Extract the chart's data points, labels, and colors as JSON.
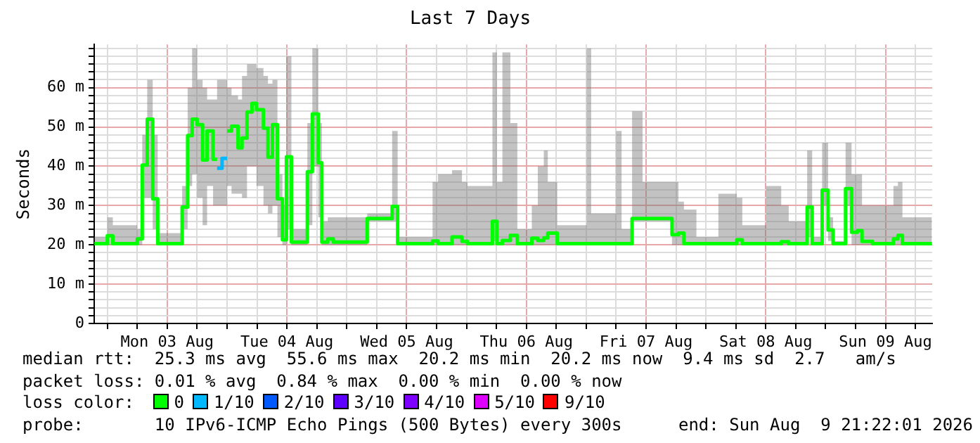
{
  "chart_data": {
    "type": "step",
    "title": "Last 7 Days",
    "ylabel": "Seconds",
    "xlim": [
      "2026-08-02T21:22",
      "2026-08-09T21:22"
    ],
    "xticks": [
      {
        "value": "2026-08-03T00:00",
        "label": null
      },
      {
        "value": "2026-08-03T06:00",
        "label": null
      },
      {
        "value": "2026-08-03T12:00",
        "label": "Mon 03 Aug"
      },
      {
        "value": "2026-08-03T18:00",
        "label": null
      },
      {
        "value": "2026-08-04T00:00",
        "label": null
      },
      {
        "value": "2026-08-04T06:00",
        "label": null
      },
      {
        "value": "2026-08-04T12:00",
        "label": "Tue 04 Aug"
      },
      {
        "value": "2026-08-04T18:00",
        "label": null
      },
      {
        "value": "2026-08-05T00:00",
        "label": null
      },
      {
        "value": "2026-08-05T06:00",
        "label": null
      },
      {
        "value": "2026-08-05T12:00",
        "label": "Wed 05 Aug"
      },
      {
        "value": "2026-08-05T18:00",
        "label": null
      },
      {
        "value": "2026-08-06T00:00",
        "label": null
      },
      {
        "value": "2026-08-06T06:00",
        "label": null
      },
      {
        "value": "2026-08-06T12:00",
        "label": "Thu 06 Aug"
      },
      {
        "value": "2026-08-06T18:00",
        "label": null
      },
      {
        "value": "2026-08-07T00:00",
        "label": null
      },
      {
        "value": "2026-08-07T06:00",
        "label": null
      },
      {
        "value": "2026-08-07T12:00",
        "label": "Fri 07 Aug"
      },
      {
        "value": "2026-08-07T18:00",
        "label": null
      },
      {
        "value": "2026-08-08T00:00",
        "label": null
      },
      {
        "value": "2026-08-08T06:00",
        "label": null
      },
      {
        "value": "2026-08-08T12:00",
        "label": "Sat 08 Aug"
      },
      {
        "value": "2026-08-08T18:00",
        "label": null
      },
      {
        "value": "2026-08-09T00:00",
        "label": null
      },
      {
        "value": "2026-08-09T06:00",
        "label": null
      },
      {
        "value": "2026-08-09T12:00",
        "label": "Sun 09 Aug"
      },
      {
        "value": "2026-08-09T18:00",
        "label": null
      }
    ],
    "ylim": [
      0,
      71
    ],
    "yticks": [
      0,
      {
        "value": 2,
        "label": null
      },
      {
        "value": 4,
        "label": null
      },
      {
        "value": 6,
        "label": null
      },
      {
        "value": 8,
        "label": null
      },
      {
        "value": 10,
        "label": "10 m"
      },
      {
        "value": 12,
        "label": null
      },
      {
        "value": 14,
        "label": null
      },
      {
        "value": 16,
        "label": null
      },
      {
        "value": 18,
        "label": null
      },
      {
        "value": 20,
        "label": "20 m"
      },
      {
        "value": 22,
        "label": null
      },
      {
        "value": 24,
        "label": null
      },
      {
        "value": 26,
        "label": null
      },
      {
        "value": 28,
        "label": null
      },
      {
        "value": 30,
        "label": "30 m"
      },
      {
        "value": 32,
        "label": null
      },
      {
        "value": 34,
        "label": null
      },
      {
        "value": 36,
        "label": null
      },
      {
        "value": 38,
        "label": null
      },
      {
        "value": 40,
        "label": "40 m"
      },
      {
        "value": 42,
        "label": null
      },
      {
        "value": 44,
        "label": null
      },
      {
        "value": 46,
        "label": null
      },
      {
        "value": 48,
        "label": null
      },
      {
        "value": 50,
        "label": "50 m"
      },
      {
        "value": 52,
        "label": null
      },
      {
        "value": 54,
        "label": null
      },
      {
        "value": 56,
        "label": null
      },
      {
        "value": 58,
        "label": null
      },
      {
        "value": 60,
        "label": "60 m"
      },
      {
        "value": 62,
        "label": null
      },
      {
        "value": 64,
        "label": null
      },
      {
        "value": 66,
        "label": null
      },
      {
        "value": 68,
        "label": null
      },
      {
        "value": 70,
        "label": null
      }
    ],
    "grid": true,
    "legend": "bottom",
    "legend_title": "loss color:",
    "line_style": "solid",
    "marker": "none",
    "series": [
      {
        "name": "0",
        "color": "#00ff00",
        "x": [
          "2026-08-02T21:24",
          "2026-08-03T00:00",
          "2026-08-03T01:06",
          "2026-08-03T06:00",
          "2026-08-03T07:00",
          "2026-08-03T08:00",
          "2026-08-03T09:06",
          "2026-08-03T10:06",
          "2026-08-03T15:00",
          "2026-08-03T16:06",
          "2026-08-03T17:00",
          "2026-08-03T18:00",
          "2026-08-03T19:06",
          "2026-08-03T20:00",
          "2026-08-03T21:12",
          "2026-08-03T22:00",
          "2026-08-03T22:00",
          "2026-08-04T00:00",
          "2026-08-04T00:54",
          "2026-08-04T02:12",
          "2026-08-04T03:00",
          "2026-08-04T04:00",
          "2026-08-04T05:00",
          "2026-08-04T05:54",
          "2026-08-04T07:18",
          "2026-08-04T08:12",
          "2026-08-04T09:06",
          "2026-08-04T10:06",
          "2026-08-04T11:06",
          "2026-08-04T11:54",
          "2026-08-04T12:54",
          "2026-08-04T16:06",
          "2026-08-04T17:06",
          "2026-08-04T18:18",
          "2026-08-04T19:00",
          "2026-08-04T20:12",
          "2026-08-04T21:18",
          "2026-08-05T04:06",
          "2026-08-05T09:06",
          "2026-08-05T10:12",
          "2026-08-05T17:12",
          "2026-08-05T18:18",
          "2026-08-05T21:06",
          "2026-08-05T23:06",
          "2026-08-06T00:12",
          "2026-08-06T05:12",
          "2026-08-06T06:06",
          "2026-08-06T07:12",
          "2026-08-06T08:48",
          "2026-08-06T10:12",
          "2026-08-06T13:06",
          "2026-08-06T14:18",
          "2026-08-06T15:30",
          "2026-08-06T16:18",
          "2026-08-06T18:12",
          "2026-08-07T00:06",
          "2026-08-07T01:00",
          "2026-08-07T06:00",
          "2026-08-07T07:06",
          "2026-08-07T09:12",
          "2026-08-07T11:18",
          "2026-08-07T17:12",
          "2026-08-07T18:30",
          "2026-08-07T19:36",
          "2026-08-07T22:06",
          "2026-08-08T02:30",
          "2026-08-08T06:12",
          "2026-08-08T07:18",
          "2026-08-08T12:06",
          "2026-08-08T15:06",
          "2026-08-08T16:36",
          "2026-08-08T20:18",
          "2026-08-08T21:18",
          "2026-08-08T23:18",
          "2026-08-09T00:30",
          "2026-08-09T01:30",
          "2026-08-09T04:00",
          "2026-08-09T05:12",
          "2026-08-09T06:24",
          "2026-08-09T07:18",
          "2026-08-09T09:24",
          "2026-08-09T13:36",
          "2026-08-09T14:30",
          "2026-08-09T15:24",
          "2026-08-09T21:18"
        ],
        "values": [
          20.3,
          22.3,
          20.3,
          21.5,
          40.3,
          52,
          31.7,
          20.3,
          29.6,
          47.8,
          52,
          50.6,
          41.6,
          49,
          41.8,
          41.8,
          null,
          49,
          50.2,
          44.7,
          47.2,
          53.8,
          56,
          54.4,
          49.7,
          42.3,
          50.6,
          31.7,
          21.3,
          42.4,
          20.7,
          38.6,
          53.3,
          40.9,
          20.7,
          21.5,
          20.7,
          26.7,
          29.8,
          20.3,
          21,
          20.3,
          22,
          20.9,
          20.3,
          26,
          20.3,
          21.1,
          22.4,
          20.3,
          21.7,
          21.1,
          21.8,
          23,
          20.3,
          20.3,
          20.3,
          20.3,
          20.3,
          26.7,
          26.7,
          22.6,
          23,
          20.3,
          20.3,
          20.3,
          21.3,
          20.3,
          20.3,
          20.8,
          20.3,
          29.6,
          20.3,
          33.9,
          23.8,
          20.3,
          34.3,
          23.2,
          23.6,
          20.9,
          20.3,
          21.5,
          22.4,
          20.3,
          20.3
        ],
        "lower": [
          20,
          20,
          20,
          20,
          32,
          32,
          24,
          20,
          24,
          35,
          38,
          32,
          25,
          35,
          30,
          28,
          30,
          35,
          33,
          33,
          32,
          40,
          40,
          35,
          30,
          28,
          30,
          22,
          20,
          24,
          20,
          25,
          40,
          27,
          20,
          20,
          20,
          26,
          26,
          20,
          20,
          20,
          20,
          20,
          20,
          21,
          20,
          20,
          20,
          20,
          20,
          20,
          20,
          20,
          20,
          20,
          20,
          20,
          20,
          26,
          26,
          20,
          20,
          20,
          20,
          20,
          20,
          20,
          20,
          20,
          20,
          22,
          20,
          30,
          21,
          20,
          30,
          20,
          20,
          20,
          20,
          20,
          20,
          20,
          20
        ],
        "upper": [
          22,
          27,
          25,
          24,
          48,
          62,
          48,
          23,
          35,
          60,
          70,
          62,
          60,
          57,
          57,
          60,
          62,
          60,
          58,
          57,
          63,
          66,
          66,
          65,
          63,
          61,
          62,
          38,
          30,
          68,
          24,
          51,
          70,
          51,
          26,
          27,
          27,
          28,
          49,
          22,
          36,
          38,
          39,
          36,
          35,
          69,
          36,
          69,
          51,
          24,
          30,
          40,
          44,
          36,
          25,
          70,
          28,
          49,
          24,
          54,
          36,
          36,
          31,
          29,
          22,
          33,
          32,
          25,
          35,
          30,
          26,
          44,
          22,
          46,
          27,
          21,
          46,
          38,
          38,
          30,
          30,
          35,
          36,
          27,
          27
        ]
      },
      {
        "name": "1/10",
        "color": "#00b8ff",
        "x": [
          "2026-08-03T22:00",
          "2026-08-03T23:00",
          "2026-08-04T00:00"
        ],
        "values": [
          39.5,
          42,
          42
        ]
      },
      {
        "name": "2/10",
        "color": "#0059ff"
      },
      {
        "name": "3/10",
        "color": "#5e00ff"
      },
      {
        "name": "4/10",
        "color": "#7e00ff"
      },
      {
        "name": "5/10",
        "color": "#dd00ff"
      },
      {
        "name": "9/10",
        "color": "#ff0000"
      }
    ],
    "annotations": [
      "median rtt:  25.3 ms avg  55.6 ms max  20.2 ms min  20.2 ms now  9.4 ms sd  2.7   am/s",
      "packet loss: 0.01 % avg  0.84 % max  0.00 % min  0.00 % now",
      "probe:       10 IPv6-ICMP Echo Pings (500 Bytes) every 300s",
      "end: Sun Aug  9 21:22:01 2026"
    ]
  }
}
